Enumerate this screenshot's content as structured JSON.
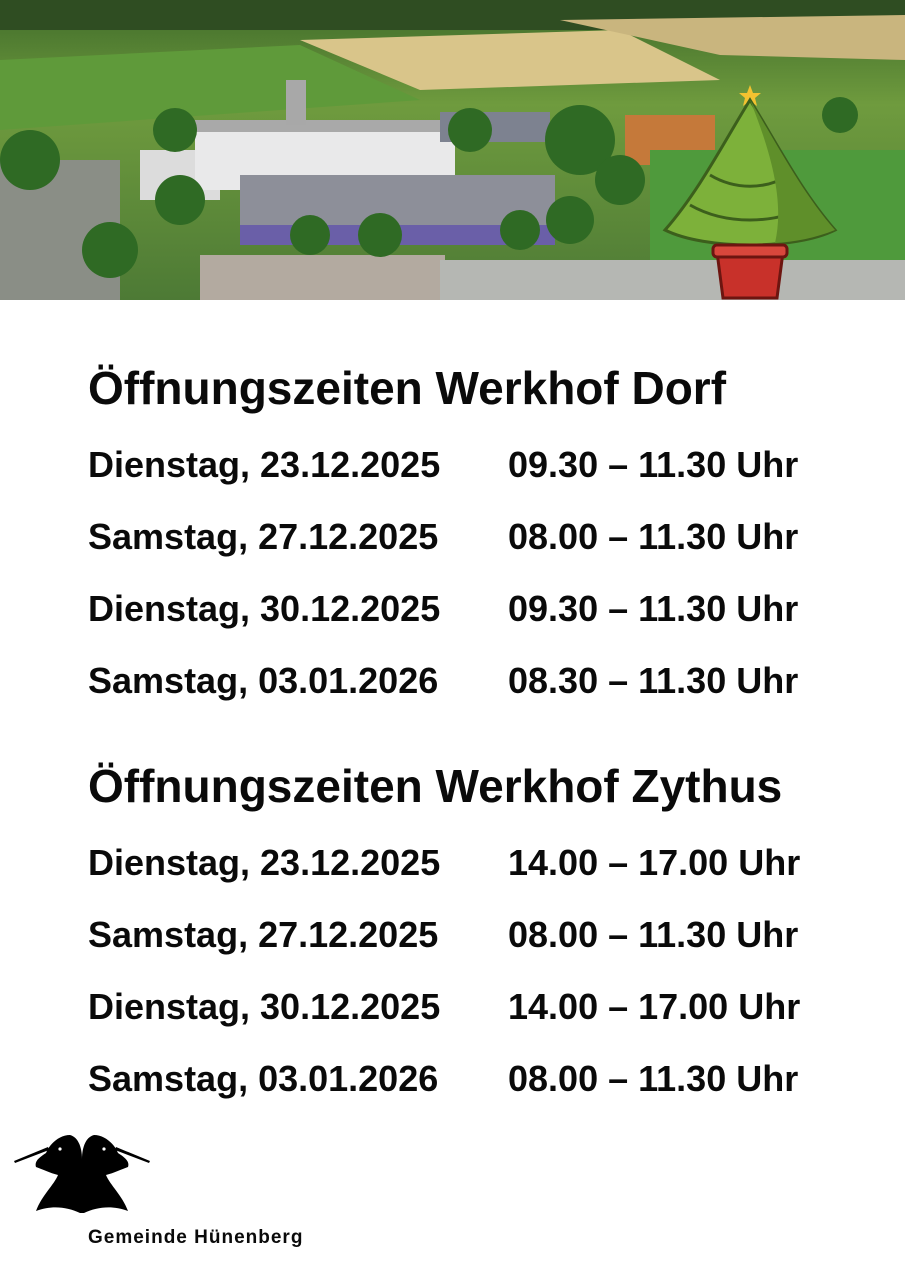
{
  "sections": [
    {
      "title": "Öffnungszeiten Werkhof Dorf",
      "rows": [
        {
          "date": "Dienstag, 23.12.2025",
          "time": "09.30 – 11.30 Uhr"
        },
        {
          "date": "Samstag, 27.12.2025",
          "time": "08.00 – 11.30 Uhr"
        },
        {
          "date": "Dienstag, 30.12.2025",
          "time": "09.30 – 11.30 Uhr"
        },
        {
          "date": "Samstag, 03.01.2026",
          "time": "08.30 – 11.30 Uhr"
        }
      ]
    },
    {
      "title": "Öffnungszeiten Werkhof Zythus",
      "rows": [
        {
          "date": "Dienstag, 23.12.2025",
          "time": "14.00 – 17.00 Uhr"
        },
        {
          "date": "Samstag, 27.12.2025",
          "time": "08.00 – 11.30 Uhr"
        },
        {
          "date": "Dienstag, 30.12.2025",
          "time": "14.00 – 17.00 Uhr"
        },
        {
          "date": "Samstag, 03.01.2026",
          "time": "08.00 – 11.30 Uhr"
        }
      ]
    }
  ],
  "logo": {
    "name": "Gemeinde Hünenberg",
    "icon": "unicorn-heads-crest"
  },
  "header_image": {
    "icon": "christmas-tree"
  }
}
